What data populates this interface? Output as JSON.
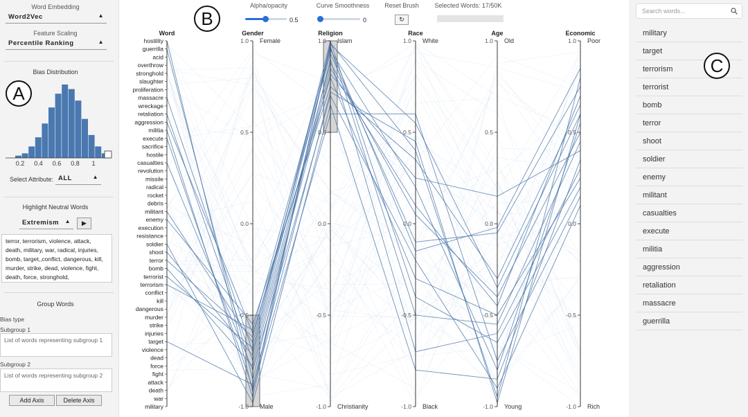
{
  "left": {
    "word_embedding_label": "Word Embedding",
    "word_embedding_value": "Word2Vec",
    "feature_scaling_label": "Feature Scaling",
    "feature_scaling_value": "Percentile Ranking",
    "bias_distribution_title": "Bias Distribution",
    "histogram_ticks": [
      "0.2",
      "0.4",
      "0.6",
      "0.8",
      "1"
    ],
    "histogram_bins": [
      1,
      2,
      5,
      9,
      15,
      22,
      28,
      32,
      30,
      25,
      17,
      10,
      5,
      2
    ],
    "select_attribute_label": "Select Attribute:",
    "select_attribute_value": "ALL",
    "highlight_neutral_title": "Highlight Neutral Words",
    "highlight_neutral_value": "Extremism",
    "neutral_words_text": "terror, terrorism, violence, attack, death, military, war, radical, injuries, bomb, target,,conflict, dangerous, kill, murder, strike, dead, violence, fight, death, force, stronghold,",
    "group_words_title": "Group Words",
    "bias_type_label": "Bias type",
    "subgroup1_label": "Subgroup 1",
    "subgroup1_placeholder": "List of words representing subgroup 1",
    "subgroup2_label": "Subgroup 2",
    "subgroup2_placeholder": "List of words representing subgroup 2",
    "add_axis": "Add Axis",
    "delete_axis": "Delete Axis"
  },
  "toolbar": {
    "alpha_label": "Alpha/opacity",
    "alpha_value": "0.5",
    "smooth_label": "Curve Smoothness",
    "smooth_value": "0",
    "reset_label": "Reset Brush",
    "reset_icon": "refresh-icon",
    "selected_label": "Selected Words: 17/50K"
  },
  "markers": {
    "a": "A",
    "b": "B",
    "c": "C"
  },
  "chart_data": {
    "type": "parallel-coordinates",
    "axes": [
      {
        "name": "Word",
        "type": "categorical"
      },
      {
        "name": "Gender",
        "top": "Female",
        "bottom": "Male",
        "range": [
          -1,
          1
        ],
        "brush": [
          -1.0,
          -0.5
        ]
      },
      {
        "name": "Religion",
        "top": "Islam",
        "bottom": "Christianity",
        "range": [
          -1,
          1
        ],
        "brush": [
          0.5,
          1.0
        ]
      },
      {
        "name": "Race",
        "top": "White",
        "bottom": "Black",
        "range": [
          -1,
          1
        ]
      },
      {
        "name": "Age",
        "top": "Old",
        "bottom": "Young",
        "range": [
          -1,
          1
        ]
      },
      {
        "name": "Economic",
        "top": "Poor",
        "bottom": "Rich",
        "range": [
          -1,
          1
        ]
      }
    ],
    "ticks": [
      "1.0",
      "0.5",
      "0.0",
      "-0.5",
      "-1.0"
    ],
    "brush_tick_labels": {
      "gender": "-0.50",
      "gender_bottom": "-1.00",
      "religion": "0.50",
      "religion_top": "1.00"
    },
    "words": [
      "hostility",
      "guerrilla",
      "acid",
      "overthrow",
      "stronghold",
      "slaughter",
      "proliferation",
      "massacre",
      "wreckage",
      "retaliation",
      "aggression",
      "militia",
      "execute",
      "sacrifice",
      "hostile",
      "casualties",
      "revolution",
      "missile",
      "radical",
      "rocket",
      "debris",
      "militant",
      "enemy",
      "execution",
      "resistance",
      "soldier",
      "shoot",
      "terror",
      "bomb",
      "terrorist",
      "terrorism",
      "conflict",
      "kill",
      "dangerous",
      "murder",
      "strike",
      "injuries",
      "target",
      "violence",
      "dead",
      "force",
      "fight",
      "attack",
      "death",
      "war",
      "military"
    ],
    "selected_lines": [
      {
        "word": "hostility",
        "gender": -0.92,
        "religion": 0.98,
        "race": 0.55,
        "age": -0.35,
        "economic": 0.6
      },
      {
        "word": "guerrilla",
        "gender": -0.85,
        "religion": 0.9,
        "race": -0.7,
        "age": -0.6,
        "economic": 0.3
      },
      {
        "word": "massacre",
        "gender": -0.7,
        "religion": 0.95,
        "race": 0.2,
        "age": -0.8,
        "economic": 0.55
      },
      {
        "word": "retaliation",
        "gender": -0.75,
        "religion": 0.85,
        "race": 0.1,
        "age": -0.45,
        "economic": 0.7
      },
      {
        "word": "aggression",
        "gender": -0.6,
        "religion": 0.8,
        "race": -0.3,
        "age": -0.5,
        "economic": 0.25
      },
      {
        "word": "militia",
        "gender": -0.95,
        "religion": 0.99,
        "race": 0.4,
        "age": -0.95,
        "economic": 0.8
      },
      {
        "word": "casualties",
        "gender": -0.8,
        "religion": 0.7,
        "race": -0.2,
        "age": -0.9,
        "economic": 0.1
      },
      {
        "word": "militant",
        "gender": -0.65,
        "religion": 0.97,
        "race": -0.5,
        "age": -0.55,
        "economic": 0.45
      },
      {
        "word": "enemy",
        "gender": -0.55,
        "religion": 0.75,
        "race": 0.35,
        "age": -0.3,
        "economic": 0.65
      },
      {
        "word": "execute",
        "gender": -0.9,
        "religion": 0.6,
        "race": 0.6,
        "age": -0.75,
        "economic": 0.15
      },
      {
        "word": "soldier",
        "gender": -0.98,
        "religion": 0.65,
        "race": -0.8,
        "age": -0.85,
        "economic": 0.35
      },
      {
        "word": "shoot",
        "gender": -0.72,
        "religion": 0.88,
        "race": 0.05,
        "age": -0.4,
        "economic": 0.5
      },
      {
        "word": "terror",
        "gender": -0.62,
        "religion": 0.93,
        "race": -0.1,
        "age": -0.05,
        "economic": 0.75
      },
      {
        "word": "bomb",
        "gender": -0.78,
        "religion": 0.82,
        "race": 0.25,
        "age": 0.15,
        "economic": 0.4
      },
      {
        "word": "terrorist",
        "gender": -0.68,
        "religion": 1.0,
        "race": -0.4,
        "age": -0.65,
        "economic": 0.2
      },
      {
        "word": "terrorism",
        "gender": -0.58,
        "religion": 0.96,
        "race": -0.15,
        "age": -0.02,
        "economic": 0.85
      },
      {
        "word": "target",
        "gender": -0.88,
        "religion": 0.72,
        "race": 0.45,
        "age": -0.98,
        "economic": 0.6
      }
    ]
  },
  "right": {
    "search_placeholder": "Search words...",
    "search_icon": "search-icon",
    "words": [
      "military",
      "target",
      "terrorism",
      "terrorist",
      "bomb",
      "terror",
      "shoot",
      "soldier",
      "enemy",
      "militant",
      "casualties",
      "execute",
      "militia",
      "aggression",
      "retaliation",
      "massacre",
      "guerrilla"
    ]
  }
}
